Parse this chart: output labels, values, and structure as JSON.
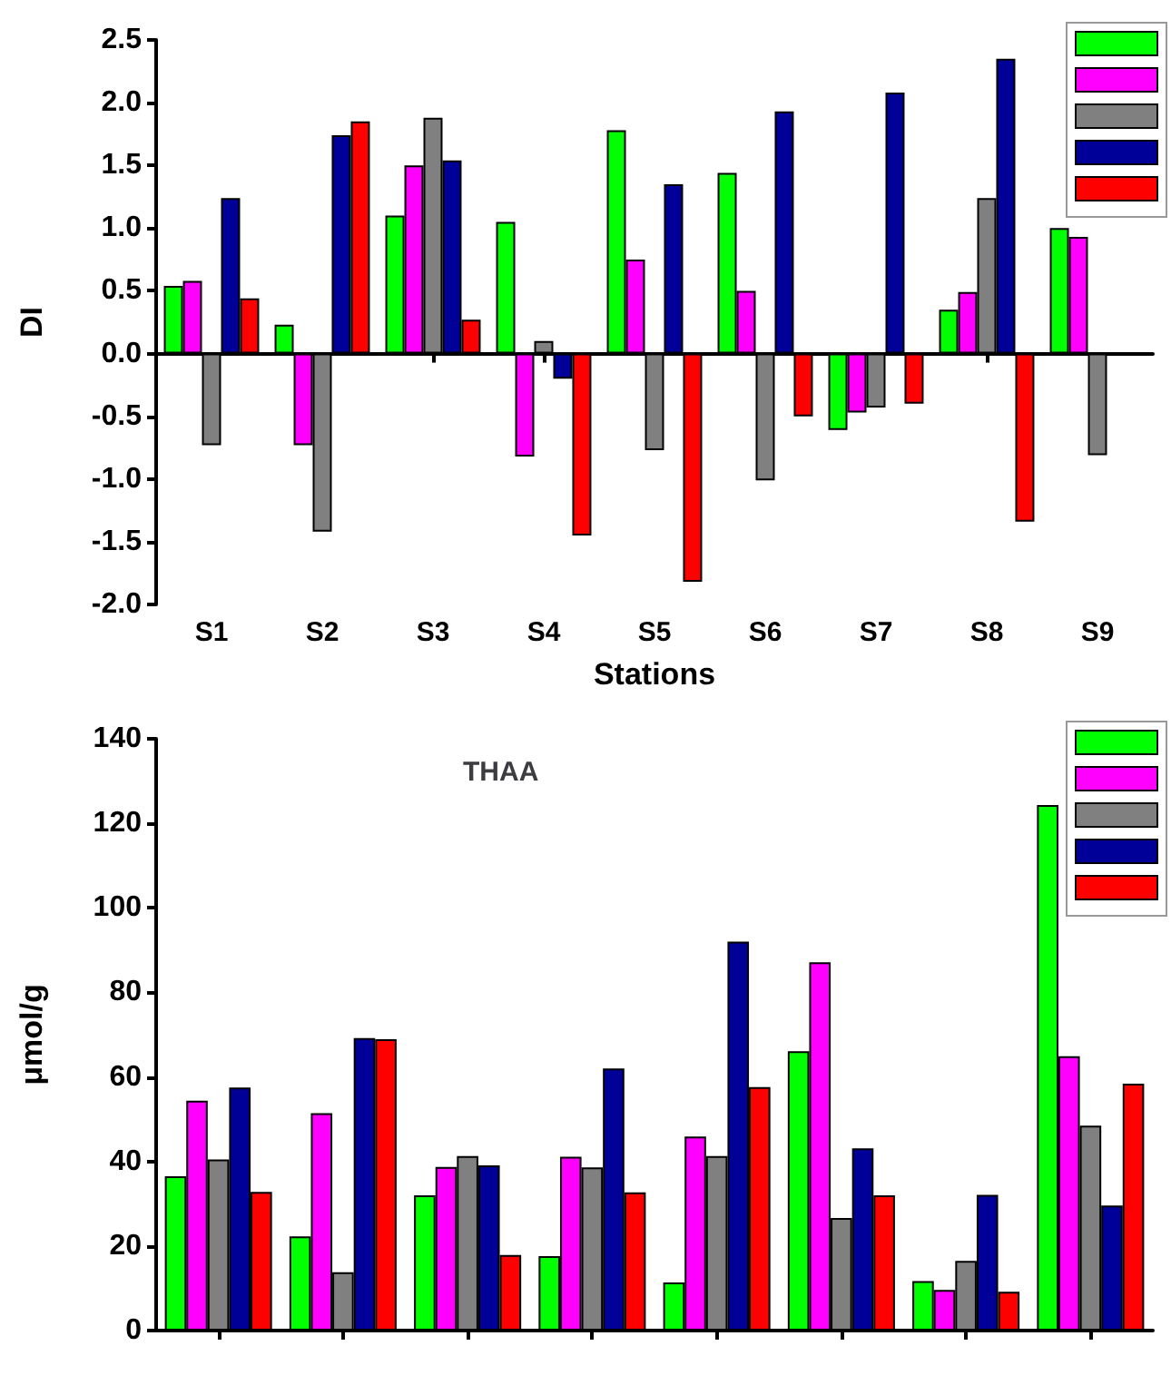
{
  "chart_data": [
    {
      "type": "bar",
      "xlabel": "Stations",
      "ylabel": "DI",
      "categories": [
        "S1",
        "S2",
        "S3",
        "S4",
        "S5",
        "S6",
        "S7",
        "S8",
        "S9"
      ],
      "ylim": [
        -2,
        2.5
      ],
      "yticks": [
        {
          "value": -2,
          "label": "-2.0"
        },
        {
          "value": -1.5,
          "label": "-1.5"
        },
        {
          "value": -1,
          "label": "-1.0"
        },
        {
          "value": -0.5,
          "label": "-0.5"
        },
        {
          "value": 0,
          "label": "0.0"
        },
        {
          "value": 0.5,
          "label": "0.5"
        },
        {
          "value": 1,
          "label": "1.0"
        },
        {
          "value": 1.5,
          "label": "1.5"
        },
        {
          "value": 2,
          "label": "2.0"
        },
        {
          "value": 2.5,
          "label": "2.5"
        }
      ],
      "series": [
        {
          "color": "#00ff00",
          "values": [
            0.54,
            0.23,
            1.1,
            1.05,
            1.78,
            1.44,
            -0.61,
            0.35,
            1.0
          ]
        },
        {
          "color": "#ff00ff",
          "values": [
            0.58,
            -0.73,
            1.5,
            -0.82,
            0.75,
            0.5,
            -0.47,
            0.49,
            0.93
          ]
        },
        {
          "color": "#808080",
          "values": [
            -0.73,
            -1.42,
            1.88,
            0.1,
            -0.77,
            -1.01,
            -0.43,
            1.24,
            -0.81
          ]
        },
        {
          "color": "#000099",
          "values": [
            1.24,
            1.74,
            1.54,
            -0.2,
            1.35,
            1.93,
            2.08,
            2.35,
            null
          ]
        },
        {
          "color": "#ff0000",
          "values": [
            0.44,
            1.85,
            0.27,
            -1.45,
            -1.82,
            -0.5,
            -0.4,
            -1.34,
            null
          ]
        }
      ]
    },
    {
      "type": "bar",
      "title": "THAA",
      "ylabel": "μmol/g",
      "tick_labels": "y",
      "categories": [
        null,
        null,
        null,
        null,
        null,
        null,
        null,
        null
      ],
      "ylim": [
        0,
        140
      ],
      "yticks": [
        0,
        20,
        40,
        60,
        80,
        100,
        120,
        140
      ],
      "series": [
        {
          "color": "#00ff00",
          "values": [
            36.5,
            22.3,
            32,
            17.6,
            11.4,
            66.1,
            11.7,
            124.3
          ]
        },
        {
          "color": "#ff00ff",
          "values": [
            54.4,
            51.4,
            38.7,
            41.1,
            45.9,
            87.1,
            9.6,
            64.9
          ]
        },
        {
          "color": "#808080",
          "values": [
            40.5,
            13.8,
            41.3,
            38.6,
            41.3,
            26.6,
            16.5,
            48.5
          ]
        },
        {
          "color": "#000099",
          "values": [
            57.5,
            69.2,
            39.1,
            62,
            92,
            43.1,
            32.1,
            29.6
          ]
        },
        {
          "color": "#ff0000",
          "values": [
            32.8,
            68.9,
            17.9,
            32.7,
            57.6,
            32,
            9.2,
            58.4
          ]
        }
      ]
    }
  ]
}
